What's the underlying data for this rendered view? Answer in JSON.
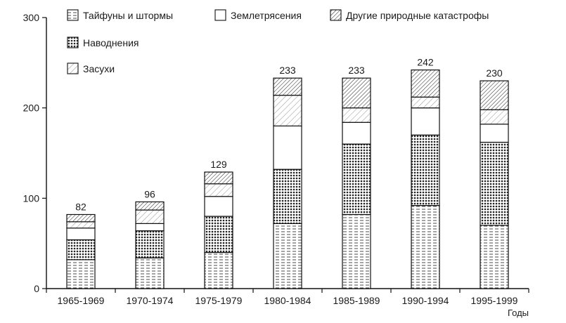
{
  "chart_data": {
    "type": "bar",
    "stacked": true,
    "categories": [
      "1965-1969",
      "1970-1974",
      "1975-1979",
      "1980-1984",
      "1985-1989",
      "1990-1994",
      "1995-1999"
    ],
    "totals": [
      "82",
      "96",
      "129",
      "233",
      "233",
      "242",
      "230"
    ],
    "series": [
      {
        "name": "Тайфуны и штормы",
        "pattern": "horizontal-dash",
        "values": [
          32,
          34,
          40,
          72,
          82,
          92,
          70
        ]
      },
      {
        "name": "Наводнения",
        "pattern": "dots",
        "values": [
          22,
          30,
          40,
          60,
          78,
          78,
          92
        ]
      },
      {
        "name": "Землетрясения",
        "pattern": "blank",
        "values": [
          13,
          8,
          22,
          48,
          24,
          30,
          20
        ]
      },
      {
        "name": "Засухи",
        "pattern": "sparse-hatch",
        "values": [
          7,
          15,
          14,
          34,
          16,
          12,
          16
        ]
      },
      {
        "name": "Другие природные катастрофы",
        "pattern": "diagonal-hatch",
        "values": [
          8,
          9,
          13,
          19,
          33,
          30,
          32
        ]
      }
    ],
    "legend_order": [
      [
        "Тайфуны и штормы",
        "Землетрясения",
        "Другие природные катастрофы"
      ],
      [
        "Наводнения"
      ],
      [
        "Засухи"
      ]
    ],
    "yticks": [
      "0",
      "100",
      "200",
      "300"
    ],
    "ylim": [
      0,
      300
    ],
    "xlabel": "Годы",
    "ylabel": "",
    "title": "",
    "grid": false,
    "legend_position": "top-left"
  }
}
